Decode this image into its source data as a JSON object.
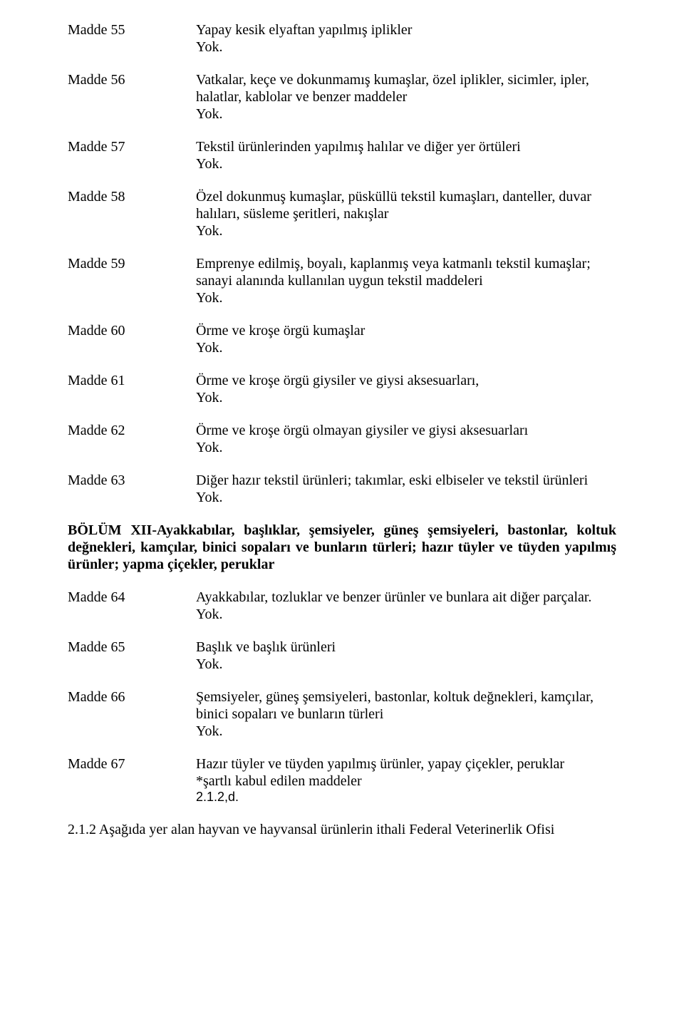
{
  "items": [
    {
      "label": "Madde 55",
      "lines": [
        "Yapay kesik elyaftan yapılmış iplikler",
        "Yok."
      ]
    },
    {
      "label": "Madde 56",
      "lines": [
        "Vatkalar, keçe ve dokunmamış kumaşlar, özel iplikler, sicimler, ipler, halatlar, kablolar ve benzer maddeler",
        "Yok."
      ]
    },
    {
      "label": "Madde 57",
      "lines": [
        "Tekstil ürünlerinden yapılmış halılar ve diğer yer örtüleri",
        "Yok."
      ]
    },
    {
      "label": "Madde 58",
      "lines": [
        "Özel dokunmuş kumaşlar, püsküllü tekstil kumaşları, danteller, duvar halıları, süsleme şeritleri, nakışlar",
        "Yok."
      ]
    },
    {
      "label": "Madde 59",
      "lines": [
        "Emprenye edilmiş, boyalı, kaplanmış veya katmanlı tekstil kumaşlar; sanayi alanında kullanılan uygun tekstil maddeleri",
        "Yok."
      ]
    },
    {
      "label": "Madde 60",
      "lines": [
        "Örme ve kroşe örgü kumaşlar",
        "Yok."
      ]
    },
    {
      "label": "Madde 61",
      "lines": [
        "Örme ve kroşe örgü giysiler ve giysi aksesuarları,",
        "Yok."
      ]
    },
    {
      "label": "Madde 62",
      "lines": [
        "Örme ve kroşe örgü olmayan giysiler ve giysi aksesuarları",
        "Yok."
      ]
    },
    {
      "label": "Madde 63",
      "lines": [
        "Diğer hazır tekstil ürünleri; takımlar, eski elbiseler ve tekstil ürünleri",
        "Yok."
      ]
    }
  ],
  "section_title": "BÖLÜM XII-Ayakkabılar, başlıklar, şemsiyeler, güneş şemsiyeleri, bastonlar, koltuk değnekleri, kamçılar, binici sopaları ve bunların türleri; hazır tüyler ve tüyden yapılmış ürünler; yapma çiçekler, peruklar",
  "items2": [
    {
      "label": "Madde 64",
      "lines": [
        "Ayakkabılar, tozluklar ve benzer ürünler ve bunlara ait diğer parçalar.",
        "Yok."
      ]
    },
    {
      "label": "Madde 65",
      "lines": [
        "Başlık ve başlık ürünleri",
        "Yok."
      ]
    },
    {
      "label": "Madde 66",
      "lines": [
        "Şemsiyeler, güneş şemsiyeleri, bastonlar, koltuk değnekleri, kamçılar, binici sopaları ve bunların türleri",
        "Yok."
      ]
    },
    {
      "label": "Madde 67",
      "lines": [
        "Hazır tüyler ve tüyden yapılmış ürünler, yapay çiçekler, peruklar",
        "*şartlı kabul edilen maddeler"
      ],
      "extra": "2.1.2,d."
    }
  ],
  "footer": "2.1.2 Aşağıda yer alan hayvan ve hayvansal ürünlerin ithali Federal Veterinerlik Ofisi"
}
